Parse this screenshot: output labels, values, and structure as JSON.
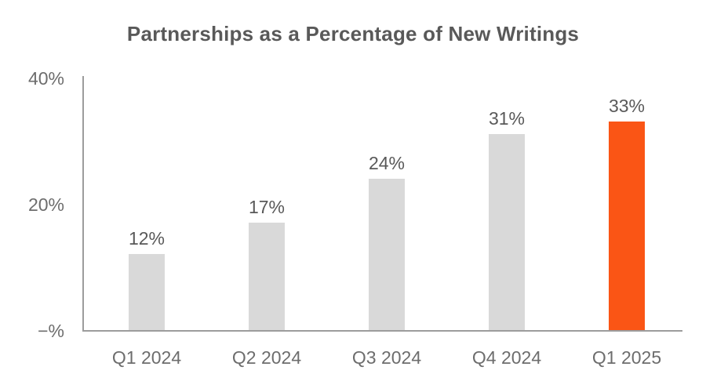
{
  "chart_data": {
    "type": "bar",
    "title": "Partnerships as a Percentage of New Writings",
    "categories": [
      "Q1 2024",
      "Q2 2024",
      "Q3 2024",
      "Q4 2024",
      "Q1 2025"
    ],
    "values": [
      12,
      17,
      24,
      31,
      33
    ],
    "data_labels": [
      "12%",
      "17%",
      "24%",
      "31%",
      "33%"
    ],
    "xlabel": "",
    "ylabel": "",
    "ylim": [
      0,
      40
    ],
    "y_ticks": [
      {
        "label": "40%",
        "value": 40
      },
      {
        "label": "20%",
        "value": 20
      },
      {
        "label": "−%",
        "value": 0
      }
    ],
    "grid": false,
    "legend": false,
    "highlight_index": 4,
    "colors": {
      "bar_default": "#d9d9d9",
      "bar_highlight": "#fa5515",
      "axis_line": "#9c9c9c",
      "title_text": "#595959",
      "data_label_text": "#595959",
      "tick_label_text": "#6d6d6d"
    }
  }
}
